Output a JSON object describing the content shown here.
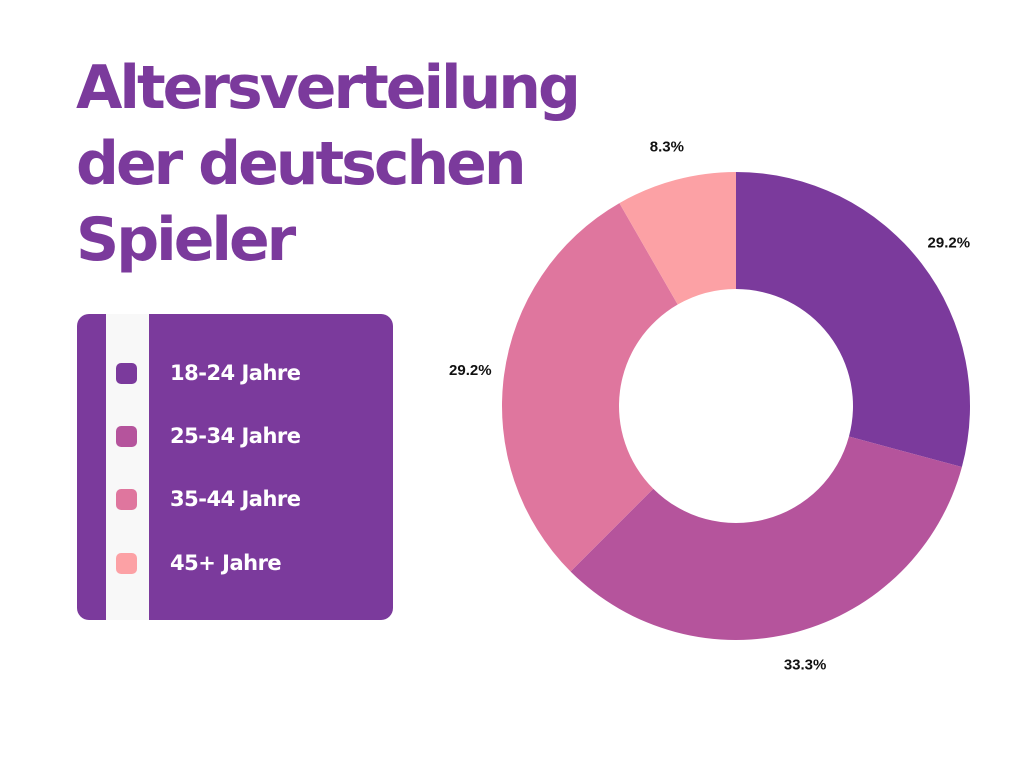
{
  "title": {
    "line1": "Altersverteilung",
    "line2": "der deutschen",
    "line3": "Spieler"
  },
  "legend": {
    "items": [
      {
        "label": "18-24 Jahre",
        "color": "#7b3a9c"
      },
      {
        "label": "25-34 Jahre",
        "color": "#b5549c"
      },
      {
        "label": "35-44 Jahre",
        "color": "#df769e"
      },
      {
        "label": "45+ Jahre",
        "color": "#fca1a5"
      }
    ]
  },
  "chart_data": {
    "type": "pie",
    "variant": "donut",
    "title": "Altersverteilung der deutschen Spieler",
    "categories": [
      "18-24 Jahre",
      "25-34 Jahre",
      "35-44 Jahre",
      "45+ Jahre"
    ],
    "values": [
      29.2,
      33.3,
      29.2,
      8.3
    ],
    "data_labels": [
      "29.2%",
      "33.3%",
      "29.2%",
      "8.3%"
    ],
    "colors": [
      "#7b3a9c",
      "#b5549c",
      "#df769e",
      "#fca1a5"
    ],
    "legend_placement": "left"
  }
}
